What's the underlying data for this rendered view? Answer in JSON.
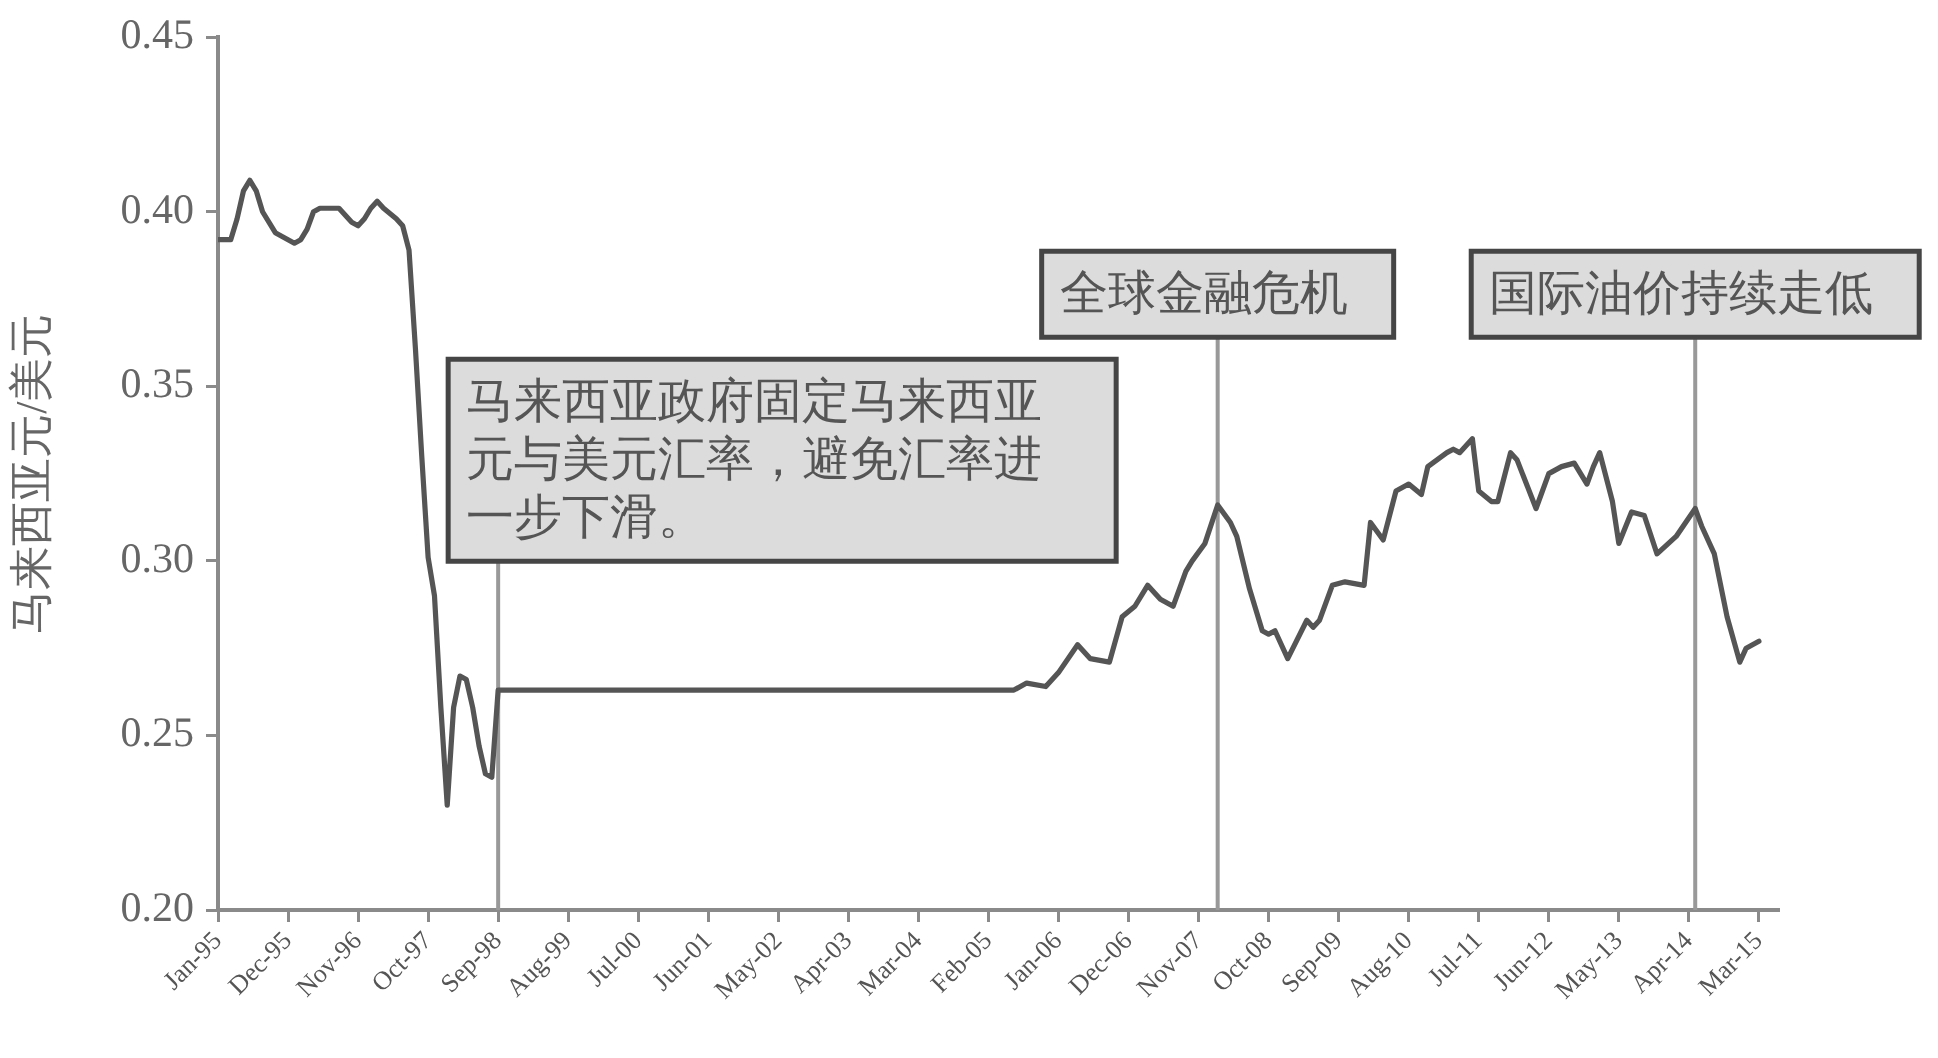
{
  "chart_data": {
    "type": "line",
    "ylabel": "马来西亚元/美元",
    "x": [
      "1995-01",
      "1995-03",
      "1995-04",
      "1995-05",
      "1995-06",
      "1995-07",
      "1995-08",
      "1995-10",
      "1995-12",
      "1996-01",
      "1996-02",
      "1996-03",
      "1996-04",
      "1996-05",
      "1996-08",
      "1996-10",
      "1996-11",
      "1996-12",
      "1997-01",
      "1997-02",
      "1997-03",
      "1997-05",
      "1997-06",
      "1997-07",
      "1997-08",
      "1997-09",
      "1997-10",
      "1997-11",
      "1997-12",
      "1998-01",
      "1998-02",
      "1998-03",
      "1998-04",
      "1998-05",
      "1998-06",
      "1998-07",
      "1998-08",
      "1998-09",
      "2005-06",
      "2005-08",
      "2005-11",
      "2006-01",
      "2006-04",
      "2006-06",
      "2006-09",
      "2006-11",
      "2007-01",
      "2007-03",
      "2007-05",
      "2007-07",
      "2007-09",
      "2007-10",
      "2007-12",
      "2008-02",
      "2008-04",
      "2008-05",
      "2008-07",
      "2008-09",
      "2008-10",
      "2008-11",
      "2009-01",
      "2009-04",
      "2009-05",
      "2009-06",
      "2009-08",
      "2009-10",
      "2010-01",
      "2010-02",
      "2010-04",
      "2010-06",
      "2010-08",
      "2010-10",
      "2010-11",
      "2011-02",
      "2011-03",
      "2011-04",
      "2011-06",
      "2011-07",
      "2011-09",
      "2011-10",
      "2011-12",
      "2012-01",
      "2012-04",
      "2012-06",
      "2012-08",
      "2012-10",
      "2012-11",
      "2012-12",
      "2013-01",
      "2013-02",
      "2013-04",
      "2013-05",
      "2013-07",
      "2013-09",
      "2013-11",
      "2014-02",
      "2014-05",
      "2014-06",
      "2014-08",
      "2014-10",
      "2014-12",
      "2015-01",
      "2015-03"
    ],
    "series": [
      {
        "color": "#555555",
        "values": [
          0.392,
          0.392,
          0.398,
          0.406,
          0.409,
          0.406,
          0.4,
          0.394,
          0.392,
          0.391,
          0.392,
          0.395,
          0.4,
          0.401,
          0.401,
          0.397,
          0.396,
          0.398,
          0.401,
          0.403,
          0.401,
          0.398,
          0.396,
          0.389,
          0.361,
          0.33,
          0.301,
          0.29,
          0.258,
          0.23,
          0.258,
          0.267,
          0.266,
          0.258,
          0.247,
          0.239,
          0.238,
          0.263,
          0.263,
          0.265,
          0.264,
          0.268,
          0.276,
          0.272,
          0.271,
          0.284,
          0.287,
          0.293,
          0.289,
          0.287,
          0.297,
          0.3,
          0.305,
          0.316,
          0.311,
          0.307,
          0.292,
          0.28,
          0.279,
          0.28,
          0.272,
          0.283,
          0.281,
          0.283,
          0.293,
          0.294,
          0.293,
          0.311,
          0.306,
          0.32,
          0.322,
          0.319,
          0.327,
          0.331,
          0.332,
          0.331,
          0.335,
          0.32,
          0.317,
          0.317,
          0.331,
          0.329,
          0.315,
          0.325,
          0.327,
          0.328,
          0.325,
          0.322,
          0.327,
          0.331,
          0.317,
          0.305,
          0.314,
          0.313,
          0.302,
          0.307,
          0.315,
          0.31,
          0.302,
          0.284,
          0.271,
          0.275,
          0.277
        ]
      }
    ],
    "xlim": [
      "1995-01",
      "2015-06"
    ],
    "xticks": [
      {
        "value": "1995-01",
        "label": "Jan-95"
      },
      {
        "value": "1995-12",
        "label": "Dec-95"
      },
      {
        "value": "1996-11",
        "label": "Nov-96"
      },
      {
        "value": "1997-10",
        "label": "Oct-97"
      },
      {
        "value": "1998-09",
        "label": "Sep-98"
      },
      {
        "value": "1999-08",
        "label": "Aug-99"
      },
      {
        "value": "2000-07",
        "label": "Jul-00"
      },
      {
        "value": "2001-06",
        "label": "Jun-01"
      },
      {
        "value": "2002-05",
        "label": "May-02"
      },
      {
        "value": "2003-04",
        "label": "Apr-03"
      },
      {
        "value": "2004-03",
        "label": "Mar-04"
      },
      {
        "value": "2005-02",
        "label": "Feb-05"
      },
      {
        "value": "2006-01",
        "label": "Jan-06"
      },
      {
        "value": "2006-12",
        "label": "Dec-06"
      },
      {
        "value": "2007-11",
        "label": "Nov-07"
      },
      {
        "value": "2008-10",
        "label": "Oct-08"
      },
      {
        "value": "2009-09",
        "label": "Sep-09"
      },
      {
        "value": "2010-08",
        "label": "Aug-10"
      },
      {
        "value": "2011-07",
        "label": "Jul-11"
      },
      {
        "value": "2012-06",
        "label": "Jun-12"
      },
      {
        "value": "2013-05",
        "label": "May-13"
      },
      {
        "value": "2014-04",
        "label": "Apr-14"
      },
      {
        "value": "2015-03",
        "label": "Mar-15"
      }
    ],
    "ylim": [
      0.2,
      0.45
    ],
    "yticks": [
      {
        "value": 0.2,
        "label": "0.20"
      },
      0.25,
      {
        "value": 0.3,
        "label": "0.30"
      },
      0.35,
      {
        "value": 0.4,
        "label": "0.40"
      },
      0.45
    ],
    "ref_lines": [
      {
        "axis": "x",
        "value": "1998-09",
        "label": "马来西亚政府固定马来西亚元与美元汇率，避免汇率进一步下滑。",
        "color": "#999999"
      },
      {
        "axis": "x",
        "value": "2008-02",
        "label": "全球金融危机",
        "color": "#999999"
      },
      {
        "axis": "x",
        "value": "2014-05",
        "label": "国际油价持续走低",
        "color": "#999999"
      }
    ],
    "grid": false,
    "legend": false,
    "marker": "none"
  }
}
